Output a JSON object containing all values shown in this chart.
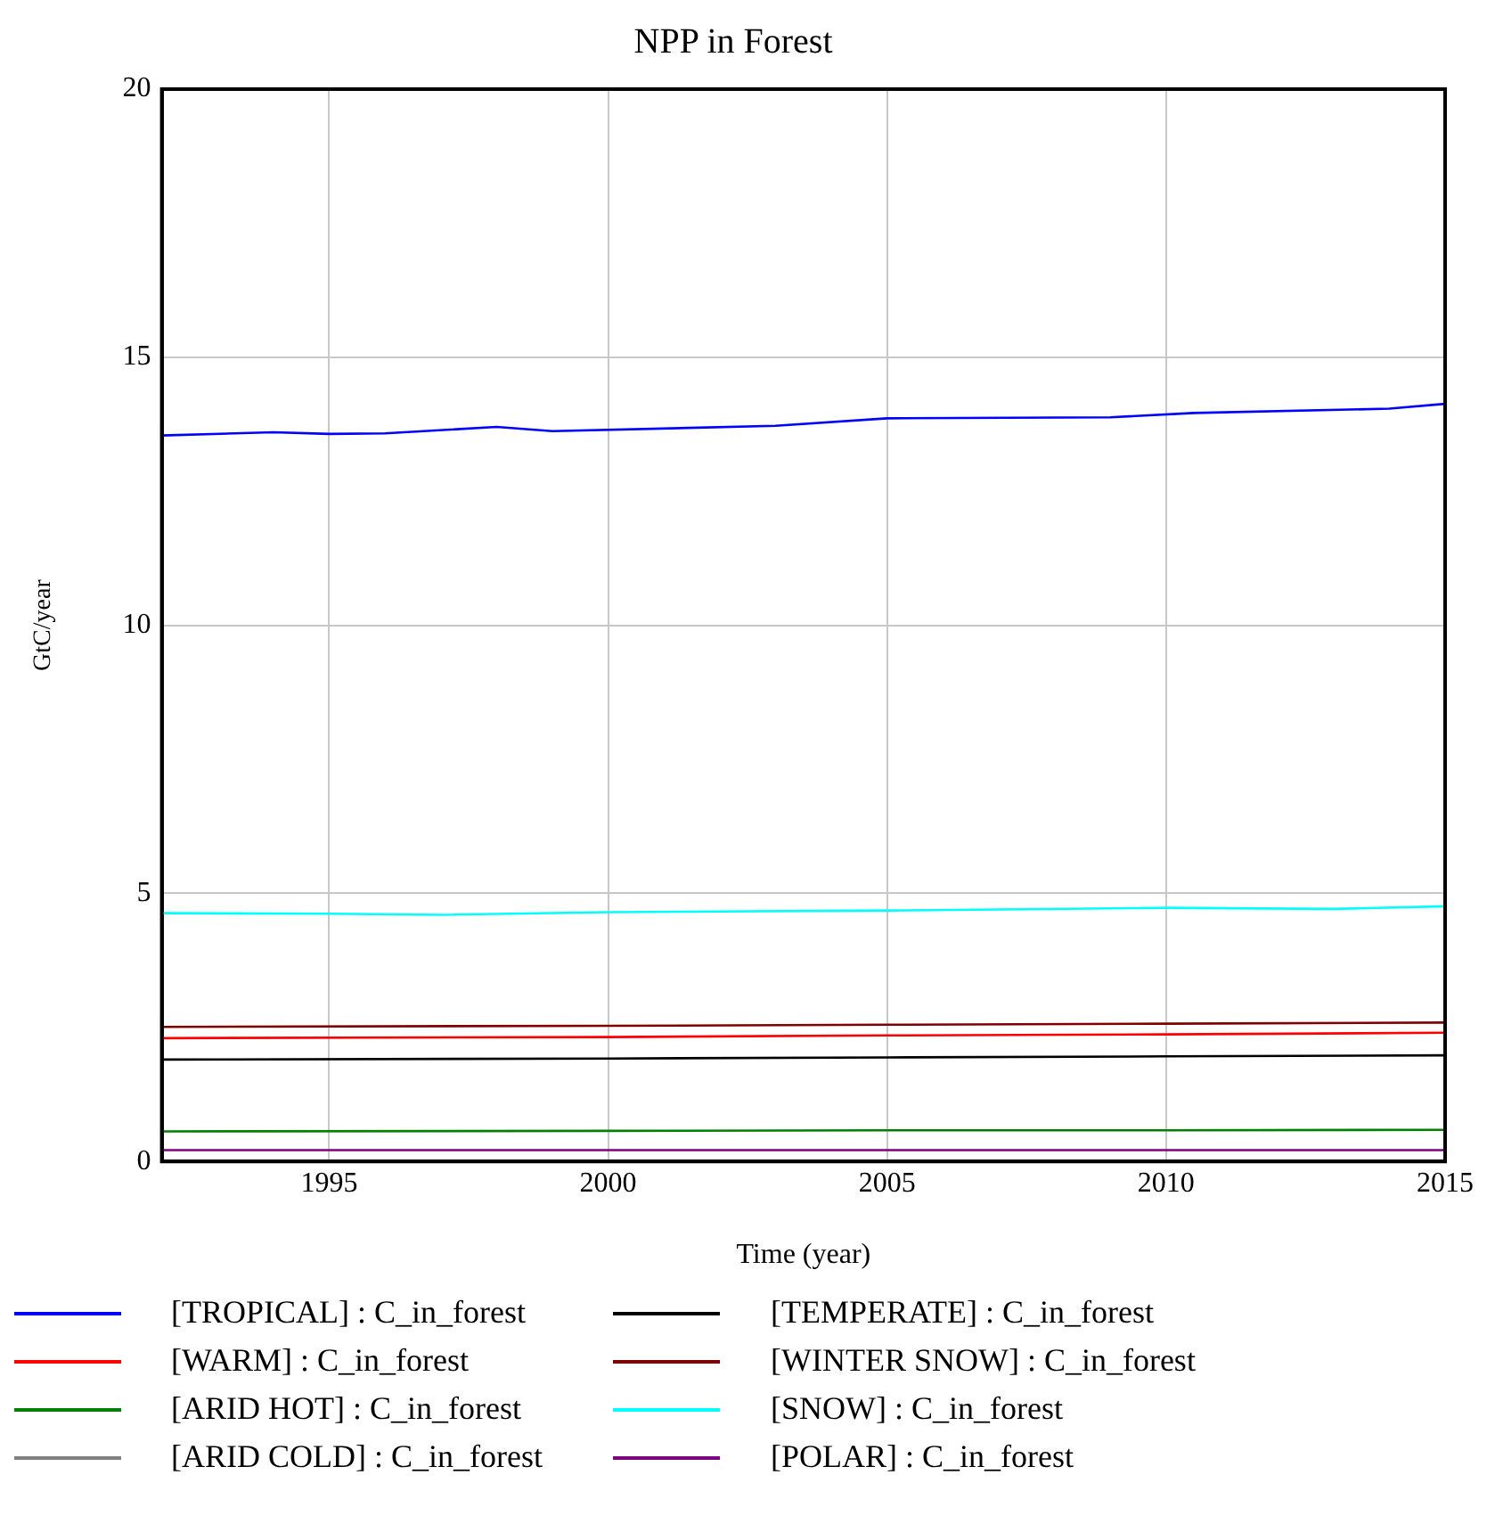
{
  "chart_data": {
    "type": "line",
    "title": "NPP in Forest",
    "xlabel": "Time (year)",
    "ylabel": "GtC/year",
    "xlim": [
      1992,
      2015
    ],
    "xticks": [
      1995,
      2000,
      2005,
      2010,
      2015
    ],
    "ylim": [
      0,
      20
    ],
    "yticks": [
      0,
      5,
      10,
      15,
      20
    ],
    "grid": true,
    "legend": "bottom",
    "marker": "none",
    "line_style": "solid",
    "series": [
      {
        "name": "[TROPICAL] : C_in_forest",
        "color": "#0000ff",
        "x": [
          1992,
          1994,
          1995,
          1996,
          1998,
          1999,
          2003,
          2005,
          2009,
          2010.5,
          2014,
          2015
        ],
        "values": [
          13.54,
          13.6,
          13.57,
          13.58,
          13.7,
          13.62,
          13.72,
          13.86,
          13.88,
          13.96,
          14.04,
          14.13
        ]
      },
      {
        "name": "[WARM] : C_in_forest",
        "color": "#ff0000",
        "x": [
          1992,
          2000,
          2005,
          2010,
          2015
        ],
        "values": [
          2.3,
          2.32,
          2.35,
          2.37,
          2.4
        ]
      },
      {
        "name": "[ARID HOT] : C_in_forest",
        "color": "#008000",
        "x": [
          1992,
          2000,
          2005,
          2010,
          2015
        ],
        "values": [
          0.56,
          0.57,
          0.58,
          0.58,
          0.59
        ]
      },
      {
        "name": "[ARID COLD] : C_in_forest",
        "color": "#808080"
      },
      {
        "name": "[TEMPERATE] : C_in_forest",
        "color": "#000000",
        "x": [
          1992,
          2000,
          2005,
          2010,
          2015
        ],
        "values": [
          1.9,
          1.92,
          1.94,
          1.96,
          1.98
        ]
      },
      {
        "name": "[WINTER SNOW] : C_in_forest",
        "color": "#800000",
        "x": [
          1992,
          2000,
          2005,
          2010,
          2015
        ],
        "values": [
          2.51,
          2.53,
          2.55,
          2.57,
          2.59
        ]
      },
      {
        "name": "[SNOW] : C_in_forest",
        "color": "#00ffff",
        "x": [
          1992,
          1995,
          1997,
          2000,
          2005,
          2010,
          2013,
          2015
        ],
        "values": [
          4.63,
          4.62,
          4.6,
          4.65,
          4.68,
          4.73,
          4.71,
          4.76
        ]
      },
      {
        "name": "[POLAR] : C_in_forest",
        "color": "#800080",
        "x": [
          1992,
          2015
        ],
        "values": [
          0.21,
          0.21
        ]
      }
    ]
  }
}
